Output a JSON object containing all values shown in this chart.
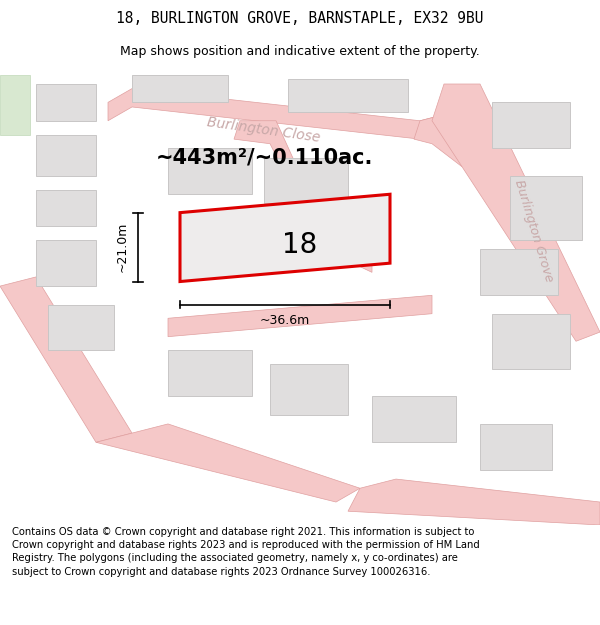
{
  "title_line1": "18, BURLINGTON GROVE, BARNSTAPLE, EX32 9BU",
  "title_line2": "Map shows position and indicative extent of the property.",
  "footer_text": "Contains OS data © Crown copyright and database right 2021. This information is subject to Crown copyright and database rights 2023 and is reproduced with the permission of HM Land Registry. The polygons (including the associated geometry, namely x, y co-ordinates) are subject to Crown copyright and database rights 2023 Ordnance Survey 100026316.",
  "map_bg_color": "#f2efef",
  "road_color": "#f5c8c8",
  "road_edge_color": "#e0a0a0",
  "building_color": "#e0dede",
  "building_edge_color": "#c8c6c6",
  "green_color": "#d8e8d0",
  "green_edge_color": "#c0d8b8",
  "red_outline_color": "#dd0000",
  "street_label_color": "#c8a8a8",
  "property_number": "18",
  "area_label": "~443m²/~0.110ac.",
  "width_label": "~36.6m",
  "height_label": "~21.0m",
  "title_fontsize": 10.5,
  "subtitle_fontsize": 9,
  "footer_fontsize": 7.2,
  "area_fontsize": 15,
  "num_fontsize": 20,
  "dim_fontsize": 9,
  "street_fontsize": 10
}
